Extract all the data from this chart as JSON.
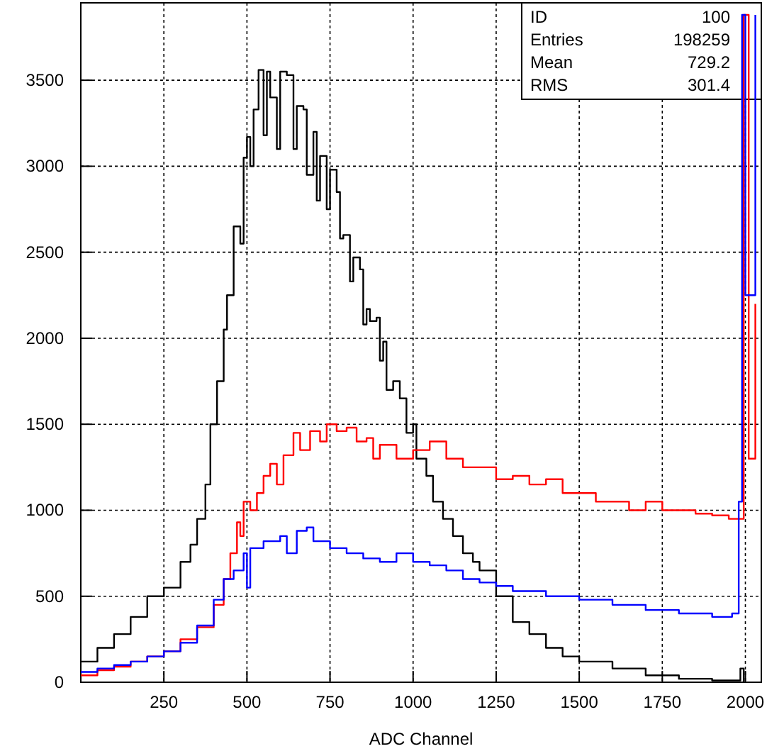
{
  "chart_data": {
    "type": "step",
    "xlabel": "ADC Channel",
    "xlim": [
      0,
      2048
    ],
    "ylim": [
      0,
      3950
    ],
    "xticks": [
      250,
      500,
      750,
      1000,
      1250,
      1500,
      1750,
      2000
    ],
    "yticks": [
      0,
      500,
      1000,
      1500,
      2000,
      2500,
      3000,
      3500
    ],
    "grid": true,
    "annotations": [
      "ID 100",
      "Entries 198259",
      "Mean 729.2",
      "RMS 301.4"
    ],
    "series": [
      {
        "color": "#000000",
        "x": [
          0,
          50,
          100,
          150,
          200,
          250,
          300,
          330,
          350,
          375,
          390,
          410,
          430,
          440,
          460,
          480,
          490,
          500,
          510,
          520,
          535,
          550,
          560,
          570,
          590,
          600,
          620,
          640,
          650,
          670,
          680,
          700,
          710,
          720,
          740,
          750,
          770,
          780,
          790,
          810,
          820,
          840,
          850,
          860,
          870,
          890,
          900,
          910,
          920,
          940,
          960,
          980,
          1000,
          1010,
          1040,
          1060,
          1090,
          1120,
          1150,
          1180,
          1200,
          1250,
          1300,
          1350,
          1400,
          1450,
          1500,
          1600,
          1700,
          1800,
          1900,
          1985,
          1995
        ],
        "values": [
          120,
          200,
          280,
          380,
          500,
          550,
          700,
          800,
          950,
          1150,
          1500,
          1750,
          2050,
          2250,
          2650,
          2550,
          3050,
          3170,
          3000,
          3330,
          3560,
          3180,
          3550,
          3400,
          3100,
          3550,
          3530,
          3100,
          3350,
          3330,
          2950,
          3200,
          2800,
          3060,
          2750,
          2980,
          2850,
          2580,
          2600,
          2330,
          2470,
          2400,
          2080,
          2170,
          2100,
          2120,
          1870,
          1980,
          1700,
          1750,
          1650,
          1450,
          1500,
          1300,
          1200,
          1050,
          950,
          850,
          750,
          700,
          650,
          500,
          350,
          280,
          200,
          150,
          120,
          80,
          40,
          20,
          10,
          80,
          0
        ]
      },
      {
        "color": "#ff0000",
        "x": [
          0,
          50,
          100,
          150,
          200,
          250,
          300,
          350,
          400,
          430,
          450,
          470,
          480,
          490,
          510,
          530,
          550,
          570,
          590,
          610,
          640,
          660,
          690,
          720,
          740,
          770,
          800,
          830,
          860,
          880,
          900,
          950,
          1000,
          1050,
          1100,
          1150,
          1200,
          1250,
          1300,
          1350,
          1400,
          1450,
          1500,
          1550,
          1600,
          1650,
          1700,
          1750,
          1800,
          1850,
          1900,
          1950,
          1995,
          2010,
          2030
        ],
        "values": [
          40,
          70,
          90,
          120,
          150,
          180,
          250,
          320,
          450,
          600,
          750,
          930,
          850,
          1050,
          1000,
          1100,
          1200,
          1270,
          1150,
          1320,
          1450,
          1350,
          1460,
          1400,
          1500,
          1460,
          1480,
          1400,
          1420,
          1300,
          1380,
          1300,
          1350,
          1400,
          1300,
          1250,
          1250,
          1180,
          1200,
          1150,
          1180,
          1100,
          1100,
          1050,
          1050,
          1000,
          1050,
          1000,
          1000,
          980,
          970,
          950,
          3880,
          1300,
          2200
        ]
      },
      {
        "color": "#0000ff",
        "x": [
          0,
          50,
          100,
          150,
          200,
          250,
          300,
          350,
          400,
          430,
          460,
          490,
          500,
          510,
          550,
          600,
          620,
          650,
          680,
          700,
          750,
          800,
          850,
          900,
          950,
          1000,
          1050,
          1100,
          1150,
          1200,
          1250,
          1300,
          1400,
          1500,
          1600,
          1700,
          1800,
          1900,
          1960,
          1980,
          1990,
          2000,
          2030
        ],
        "values": [
          60,
          80,
          100,
          120,
          150,
          180,
          230,
          330,
          480,
          600,
          650,
          750,
          550,
          780,
          820,
          850,
          750,
          880,
          900,
          820,
          780,
          750,
          720,
          700,
          750,
          700,
          680,
          650,
          600,
          580,
          560,
          530,
          500,
          480,
          450,
          420,
          400,
          380,
          400,
          1050,
          3880,
          2250,
          3880
        ]
      }
    ]
  }
}
